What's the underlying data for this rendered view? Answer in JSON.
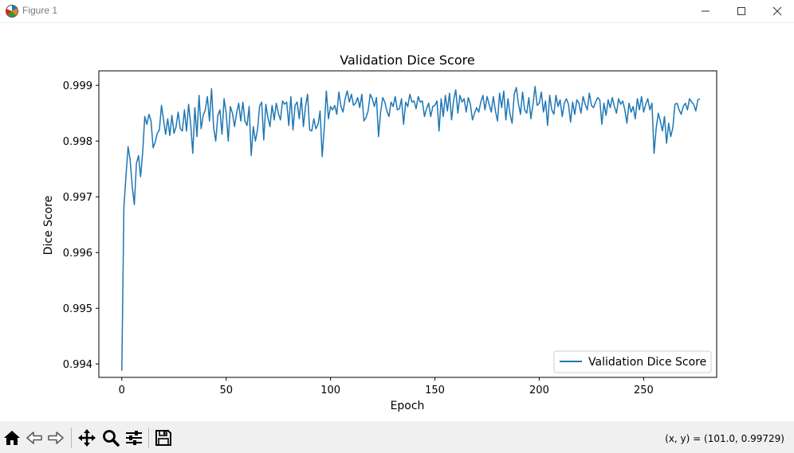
{
  "window": {
    "title": "Figure 1",
    "icon": "matplotlib-icon",
    "controls": [
      "minimize-icon",
      "maximize-icon",
      "close-icon"
    ]
  },
  "toolbar": {
    "buttons": [
      "home-icon",
      "back-icon",
      "forward-icon",
      "pan-icon",
      "zoom-icon",
      "configure-subplots-icon",
      "save-icon"
    ],
    "coords_text": "(x, y) = (101.0, 0.99729)"
  },
  "colors": {
    "series": "#1f77b4",
    "toolbar_bg": "#f0f0f0"
  },
  "chart_data": {
    "type": "line",
    "title": "Validation Dice Score",
    "xlabel": "Epoch",
    "ylabel": "Dice Score",
    "xlim": [
      -11,
      285
    ],
    "ylim": [
      0.99376,
      0.99926
    ],
    "xticks": [
      0,
      50,
      100,
      150,
      200,
      250
    ],
    "xtick_labels": [
      "0",
      "50",
      "100",
      "150",
      "200",
      "250"
    ],
    "yticks": [
      0.994,
      0.995,
      0.996,
      0.997,
      0.998,
      0.999
    ],
    "ytick_labels": [
      "0.994",
      "0.995",
      "0.996",
      "0.997",
      "0.998",
      "0.999"
    ],
    "grid": false,
    "legend": {
      "placement": "lower-right"
    },
    "series": [
      {
        "name": "Validation Dice Score",
        "x_start": 0,
        "x_step": 1,
        "values": [
          0.99388,
          0.99682,
          0.99738,
          0.9979,
          0.99766,
          0.99718,
          0.99686,
          0.9976,
          0.99774,
          0.99736,
          0.9978,
          0.99844,
          0.9983,
          0.99848,
          0.99836,
          0.99788,
          0.99798,
          0.99814,
          0.9982,
          0.99864,
          0.99838,
          0.99812,
          0.9984,
          0.9981,
          0.99846,
          0.99814,
          0.99826,
          0.99852,
          0.99822,
          0.99818,
          0.99856,
          0.99818,
          0.99866,
          0.9983,
          0.99778,
          0.9986,
          0.99808,
          0.99882,
          0.99822,
          0.99846,
          0.99856,
          0.9988,
          0.99836,
          0.99894,
          0.99824,
          0.998,
          0.99846,
          0.99856,
          0.99812,
          0.99876,
          0.9985,
          0.998,
          0.99862,
          0.9985,
          0.99826,
          0.9985,
          0.99868,
          0.99836,
          0.9987,
          0.99836,
          0.99828,
          0.99862,
          0.99774,
          0.99826,
          0.998,
          0.9982,
          0.99862,
          0.9987,
          0.99802,
          0.99866,
          0.99842,
          0.99826,
          0.99864,
          0.99838,
          0.99868,
          0.9985,
          0.99838,
          0.99872,
          0.99866,
          0.9987,
          0.99828,
          0.9988,
          0.9982,
          0.99864,
          0.9987,
          0.9984,
          0.99878,
          0.99826,
          0.99862,
          0.99884,
          0.9982,
          0.99818,
          0.9984,
          0.99822,
          0.9983,
          0.99854,
          0.99772,
          0.99824,
          0.9989,
          0.9984,
          0.99862,
          0.99856,
          0.99864,
          0.99848,
          0.99888,
          0.99862,
          0.99852,
          0.99876,
          0.9989,
          0.9987,
          0.99884,
          0.99864,
          0.99868,
          0.99878,
          0.9986,
          0.99884,
          0.99836,
          0.99842,
          0.99854,
          0.99884,
          0.99876,
          0.99862,
          0.99878,
          0.99808,
          0.99852,
          0.99878,
          0.9987,
          0.99854,
          0.99844,
          0.9987,
          0.99862,
          0.9988,
          0.99856,
          0.99858,
          0.99876,
          0.9983,
          0.9987,
          0.99862,
          0.99884,
          0.9987,
          0.99872,
          0.99858,
          0.9988,
          0.9987,
          0.99872,
          0.99844,
          0.99858,
          0.99868,
          0.99844,
          0.99862,
          0.99864,
          0.99872,
          0.99818,
          0.99876,
          0.99844,
          0.99882,
          0.99854,
          0.99886,
          0.99838,
          0.99874,
          0.99892,
          0.9985,
          0.99882,
          0.9987,
          0.99876,
          0.99852,
          0.99878,
          0.99866,
          0.99838,
          0.9985,
          0.9986,
          0.99852,
          0.9987,
          0.99882,
          0.99856,
          0.9988,
          0.99866,
          0.99852,
          0.9988,
          0.99854,
          0.99836,
          0.99886,
          0.9986,
          0.9989,
          0.99838,
          0.99876,
          0.99848,
          0.99832,
          0.99884,
          0.99896,
          0.99868,
          0.99848,
          0.99888,
          0.99856,
          0.9985,
          0.99878,
          0.9984,
          0.99866,
          0.99898,
          0.99864,
          0.99868,
          0.99888,
          0.99852,
          0.99872,
          0.99828,
          0.99882,
          0.99856,
          0.99848,
          0.99882,
          0.99862,
          0.99874,
          0.99844,
          0.99868,
          0.99876,
          0.99866,
          0.99834,
          0.9987,
          0.99848,
          0.99874,
          0.99868,
          0.9985,
          0.9988,
          0.99866,
          0.99856,
          0.99886,
          0.99864,
          0.9986,
          0.9987,
          0.99878,
          0.99874,
          0.9983,
          0.99868,
          0.99846,
          0.99874,
          0.9986,
          0.99878,
          0.99862,
          0.9985,
          0.99876,
          0.99866,
          0.99872,
          0.99856,
          0.99832,
          0.99868,
          0.99852,
          0.99862,
          0.9984,
          0.99876,
          0.99856,
          0.9988,
          0.99852,
          0.99866,
          0.99876,
          0.99856,
          0.99868,
          0.99778,
          0.99822,
          0.9985,
          0.99836,
          0.99818,
          0.99844,
          0.99796,
          0.99832,
          0.99808,
          0.99824,
          0.99866,
          0.99868,
          0.99856,
          0.99848,
          0.99862,
          0.99868,
          0.99856,
          0.99876,
          0.9987,
          0.99866,
          0.99854,
          0.99874,
          0.99876
        ]
      }
    ]
  }
}
